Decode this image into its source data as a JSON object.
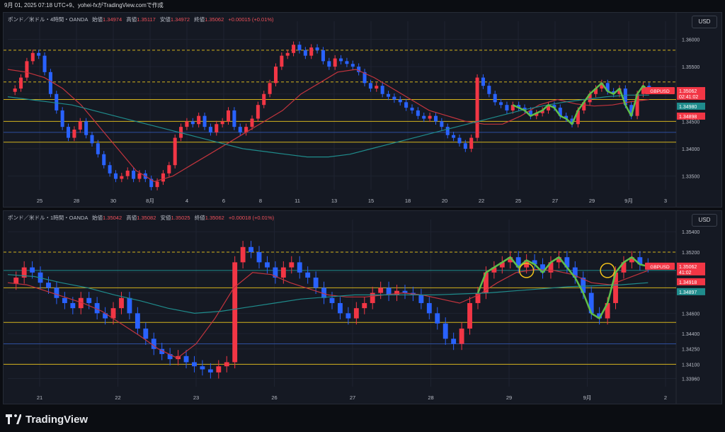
{
  "header": {
    "text": "9月 01, 2025 07:18 UTC+9、yohei-fxがTradingView.comで作成"
  },
  "footer": {
    "brand": "TradingView"
  },
  "colors": {
    "up": "#f23645",
    "down": "#2962ff",
    "bg": "#151923",
    "grid": "#1e2330",
    "hline_yellow": "#d4b21c",
    "hline_blue": "#2f4f9f",
    "ma_red": "#c2343d",
    "ma_teal": "#1f8c8c",
    "wave_green": "#5fbf4a",
    "circle_yellow": "#f2c21a"
  },
  "chart_data": [
    {
      "type": "candlestick",
      "legend": {
        "symbol": "ポンド／米ドル・4時間・OANDA",
        "open_label": "始値",
        "open": "1.34974",
        "high_label": "高値",
        "high": "1.35117",
        "low_label": "安値",
        "low": "1.34972",
        "close_label": "終値",
        "close": "1.35062",
        "change": "+0.00015 (+0.01%)"
      },
      "currency_button": "USD",
      "ylim": [
        1.3325,
        1.362
      ],
      "yticks": [
        "1.36000",
        "1.35500",
        "1.35000",
        "1.34500",
        "1.34000",
        "1.33500"
      ],
      "ytick_values": [
        1.36,
        1.355,
        1.35,
        1.345,
        1.34,
        1.335
      ],
      "xticks": [
        "25",
        "28",
        "30",
        "8月",
        "4",
        "6",
        "8",
        "11",
        "13",
        "15",
        "18",
        "20",
        "22",
        "25",
        "27",
        "29",
        "9月",
        "3"
      ],
      "hlines": [
        {
          "value": 1.358,
          "color": "#d4b21c",
          "style": "dashed"
        },
        {
          "value": 1.3522,
          "color": "#d4b21c",
          "style": "dashed"
        },
        {
          "value": 1.349,
          "color": "#d4b21c",
          "style": "solid"
        },
        {
          "value": 1.345,
          "color": "#d4b21c",
          "style": "solid"
        },
        {
          "value": 1.343,
          "color": "#2f4f9f",
          "style": "solid"
        },
        {
          "value": 1.3412,
          "color": "#d4b21c",
          "style": "solid"
        }
      ],
      "price_tags": [
        {
          "label": "GBPUSD",
          "value": "1.35062",
          "timer": "02:41:02",
          "color": "#f23645"
        },
        {
          "label": "",
          "value": "1.34980",
          "color": "#1f8c8c"
        },
        {
          "label": "",
          "value": "1.34898",
          "color": "#f23645"
        }
      ],
      "closes": [
        1.351,
        1.353,
        1.356,
        1.3575,
        1.357,
        1.354,
        1.35,
        1.347,
        1.344,
        1.342,
        1.3435,
        1.345,
        1.3425,
        1.341,
        1.339,
        1.337,
        1.3355,
        1.3345,
        1.335,
        1.336,
        1.3345,
        1.3355,
        1.3345,
        1.333,
        1.334,
        1.3355,
        1.337,
        1.342,
        1.344,
        1.345,
        1.3445,
        1.346,
        1.344,
        1.343,
        1.3445,
        1.345,
        1.347,
        1.344,
        1.343,
        1.344,
        1.3455,
        1.348,
        1.35,
        1.352,
        1.355,
        1.357,
        1.3575,
        1.359,
        1.358,
        1.357,
        1.3585,
        1.358,
        1.356,
        1.355,
        1.3565,
        1.356,
        1.3555,
        1.355,
        1.354,
        1.352,
        1.351,
        1.3515,
        1.35,
        1.3495,
        1.349,
        1.3485,
        1.3475,
        1.347,
        1.346,
        1.3455,
        1.346,
        1.345,
        1.344,
        1.3425,
        1.342,
        1.341,
        1.34,
        1.342,
        1.353,
        1.3515,
        1.35,
        1.3485,
        1.348,
        1.347,
        1.348,
        1.3475,
        1.347,
        1.346,
        1.3465,
        1.347,
        1.348,
        1.3475,
        1.346,
        1.3455,
        1.3445,
        1.347,
        1.3485,
        1.35,
        1.351,
        1.352,
        1.3505,
        1.35,
        1.351,
        1.348,
        1.346,
        1.35,
        1.3515,
        1.3506
      ],
      "ma_red": [
        1.3545,
        1.354,
        1.353,
        1.351,
        1.348,
        1.344,
        1.34,
        1.336,
        1.334,
        1.335,
        1.337,
        1.339,
        1.341,
        1.343,
        1.345,
        1.347,
        1.35,
        1.352,
        1.354,
        1.3545,
        1.353,
        1.351,
        1.349,
        1.347,
        1.346,
        1.345,
        1.3445,
        1.3445,
        1.346,
        1.348,
        1.349,
        1.3482,
        1.3478,
        1.348,
        1.3486,
        1.349
      ],
      "ma_teal": [
        1.3495,
        1.349,
        1.3485,
        1.348,
        1.347,
        1.346,
        1.345,
        1.344,
        1.343,
        1.342,
        1.341,
        1.34,
        1.3395,
        1.339,
        1.3385,
        1.3385,
        1.339,
        1.34,
        1.341,
        1.342,
        1.343,
        1.344,
        1.345,
        1.346,
        1.347,
        1.3478,
        1.3485,
        1.349,
        1.3495,
        1.3498,
        1.3498
      ]
    },
    {
      "type": "candlestick",
      "legend": {
        "symbol": "ポンド／米ドル・1時間・OANDA",
        "open_label": "始値",
        "open": "1.35042",
        "high_label": "高値",
        "high": "1.35082",
        "low_label": "安値",
        "low": "1.35025",
        "close_label": "終値",
        "close": "1.35062",
        "change": "+0.00018 (+0.01%)"
      },
      "currency_button": "USD",
      "ylim": [
        1.3388,
        1.3545
      ],
      "yticks": [
        "1.35400",
        "1.35200",
        "1.35000",
        "1.34800",
        "1.34600",
        "1.34400",
        "1.34250",
        "1.34100",
        "1.33960"
      ],
      "ytick_values": [
        1.354,
        1.352,
        1.35,
        1.348,
        1.346,
        1.344,
        1.3425,
        1.341,
        1.3396
      ],
      "xticks": [
        "21",
        "22",
        "23",
        "26",
        "27",
        "28",
        "29",
        "9月",
        "2"
      ],
      "hlines": [
        {
          "value": 1.352,
          "color": "#d4b21c",
          "style": "dashed"
        },
        {
          "value": 1.3502,
          "color": "#1f8c8c",
          "style": "solid"
        },
        {
          "value": 1.3485,
          "color": "#d4b21c",
          "style": "solid"
        },
        {
          "value": 1.3451,
          "color": "#d4b21c",
          "style": "solid"
        },
        {
          "value": 1.343,
          "color": "#2f4f9f",
          "style": "solid"
        },
        {
          "value": 1.341,
          "color": "#d4b21c",
          "style": "solid"
        }
      ],
      "price_tags": [
        {
          "label": "GBPUSD",
          "value": "1.35062",
          "timer": "41:02",
          "color": "#f23645"
        },
        {
          "label": "",
          "value": "1.34918",
          "color": "#f23645"
        },
        {
          "label": "",
          "value": "1.34897",
          "color": "#1f8c8c"
        }
      ],
      "closes": [
        1.3495,
        1.3505,
        1.35,
        1.349,
        1.3485,
        1.3475,
        1.347,
        1.3465,
        1.3475,
        1.347,
        1.346,
        1.3455,
        1.3465,
        1.3475,
        1.346,
        1.3445,
        1.3435,
        1.3425,
        1.342,
        1.3415,
        1.3418,
        1.3412,
        1.3408,
        1.3405,
        1.3402,
        1.3408,
        1.3412,
        1.351,
        1.3525,
        1.352,
        1.351,
        1.3505,
        1.3495,
        1.3505,
        1.351,
        1.35,
        1.3495,
        1.3485,
        1.3475,
        1.347,
        1.346,
        1.3455,
        1.3465,
        1.347,
        1.348,
        1.3485,
        1.3478,
        1.3482,
        1.348,
        1.3478,
        1.347,
        1.346,
        1.345,
        1.3435,
        1.343,
        1.3445,
        1.347,
        1.348,
        1.35,
        1.3505,
        1.351,
        1.3515,
        1.3505,
        1.3512,
        1.3508,
        1.35,
        1.351,
        1.3515,
        1.3505,
        1.3495,
        1.348,
        1.346,
        1.3455,
        1.347,
        1.35,
        1.351,
        1.3515,
        1.3508,
        1.3506
      ],
      "ma_red": [
        1.349,
        1.3488,
        1.3482,
        1.3476,
        1.347,
        1.3462,
        1.345,
        1.3438,
        1.3425,
        1.3416,
        1.343,
        1.3455,
        1.3485,
        1.35,
        1.3498,
        1.349,
        1.3484,
        1.3478,
        1.3476,
        1.3476,
        1.3478,
        1.348,
        1.3478,
        1.3474,
        1.347,
        1.3478,
        1.349,
        1.35,
        1.3503,
        1.3502,
        1.3498,
        1.349,
        1.3488,
        1.3495,
        1.3502
      ],
      "ma_teal": [
        1.3498,
        1.3496,
        1.349,
        1.3485,
        1.3478,
        1.3472,
        1.3465,
        1.346,
        1.3462,
        1.3466,
        1.347,
        1.3474,
        1.3476,
        1.3478,
        1.3478,
        1.3478,
        1.3478,
        1.3479,
        1.348,
        1.3482,
        1.3484,
        1.3486,
        1.3487,
        1.3488,
        1.349
      ]
    }
  ]
}
